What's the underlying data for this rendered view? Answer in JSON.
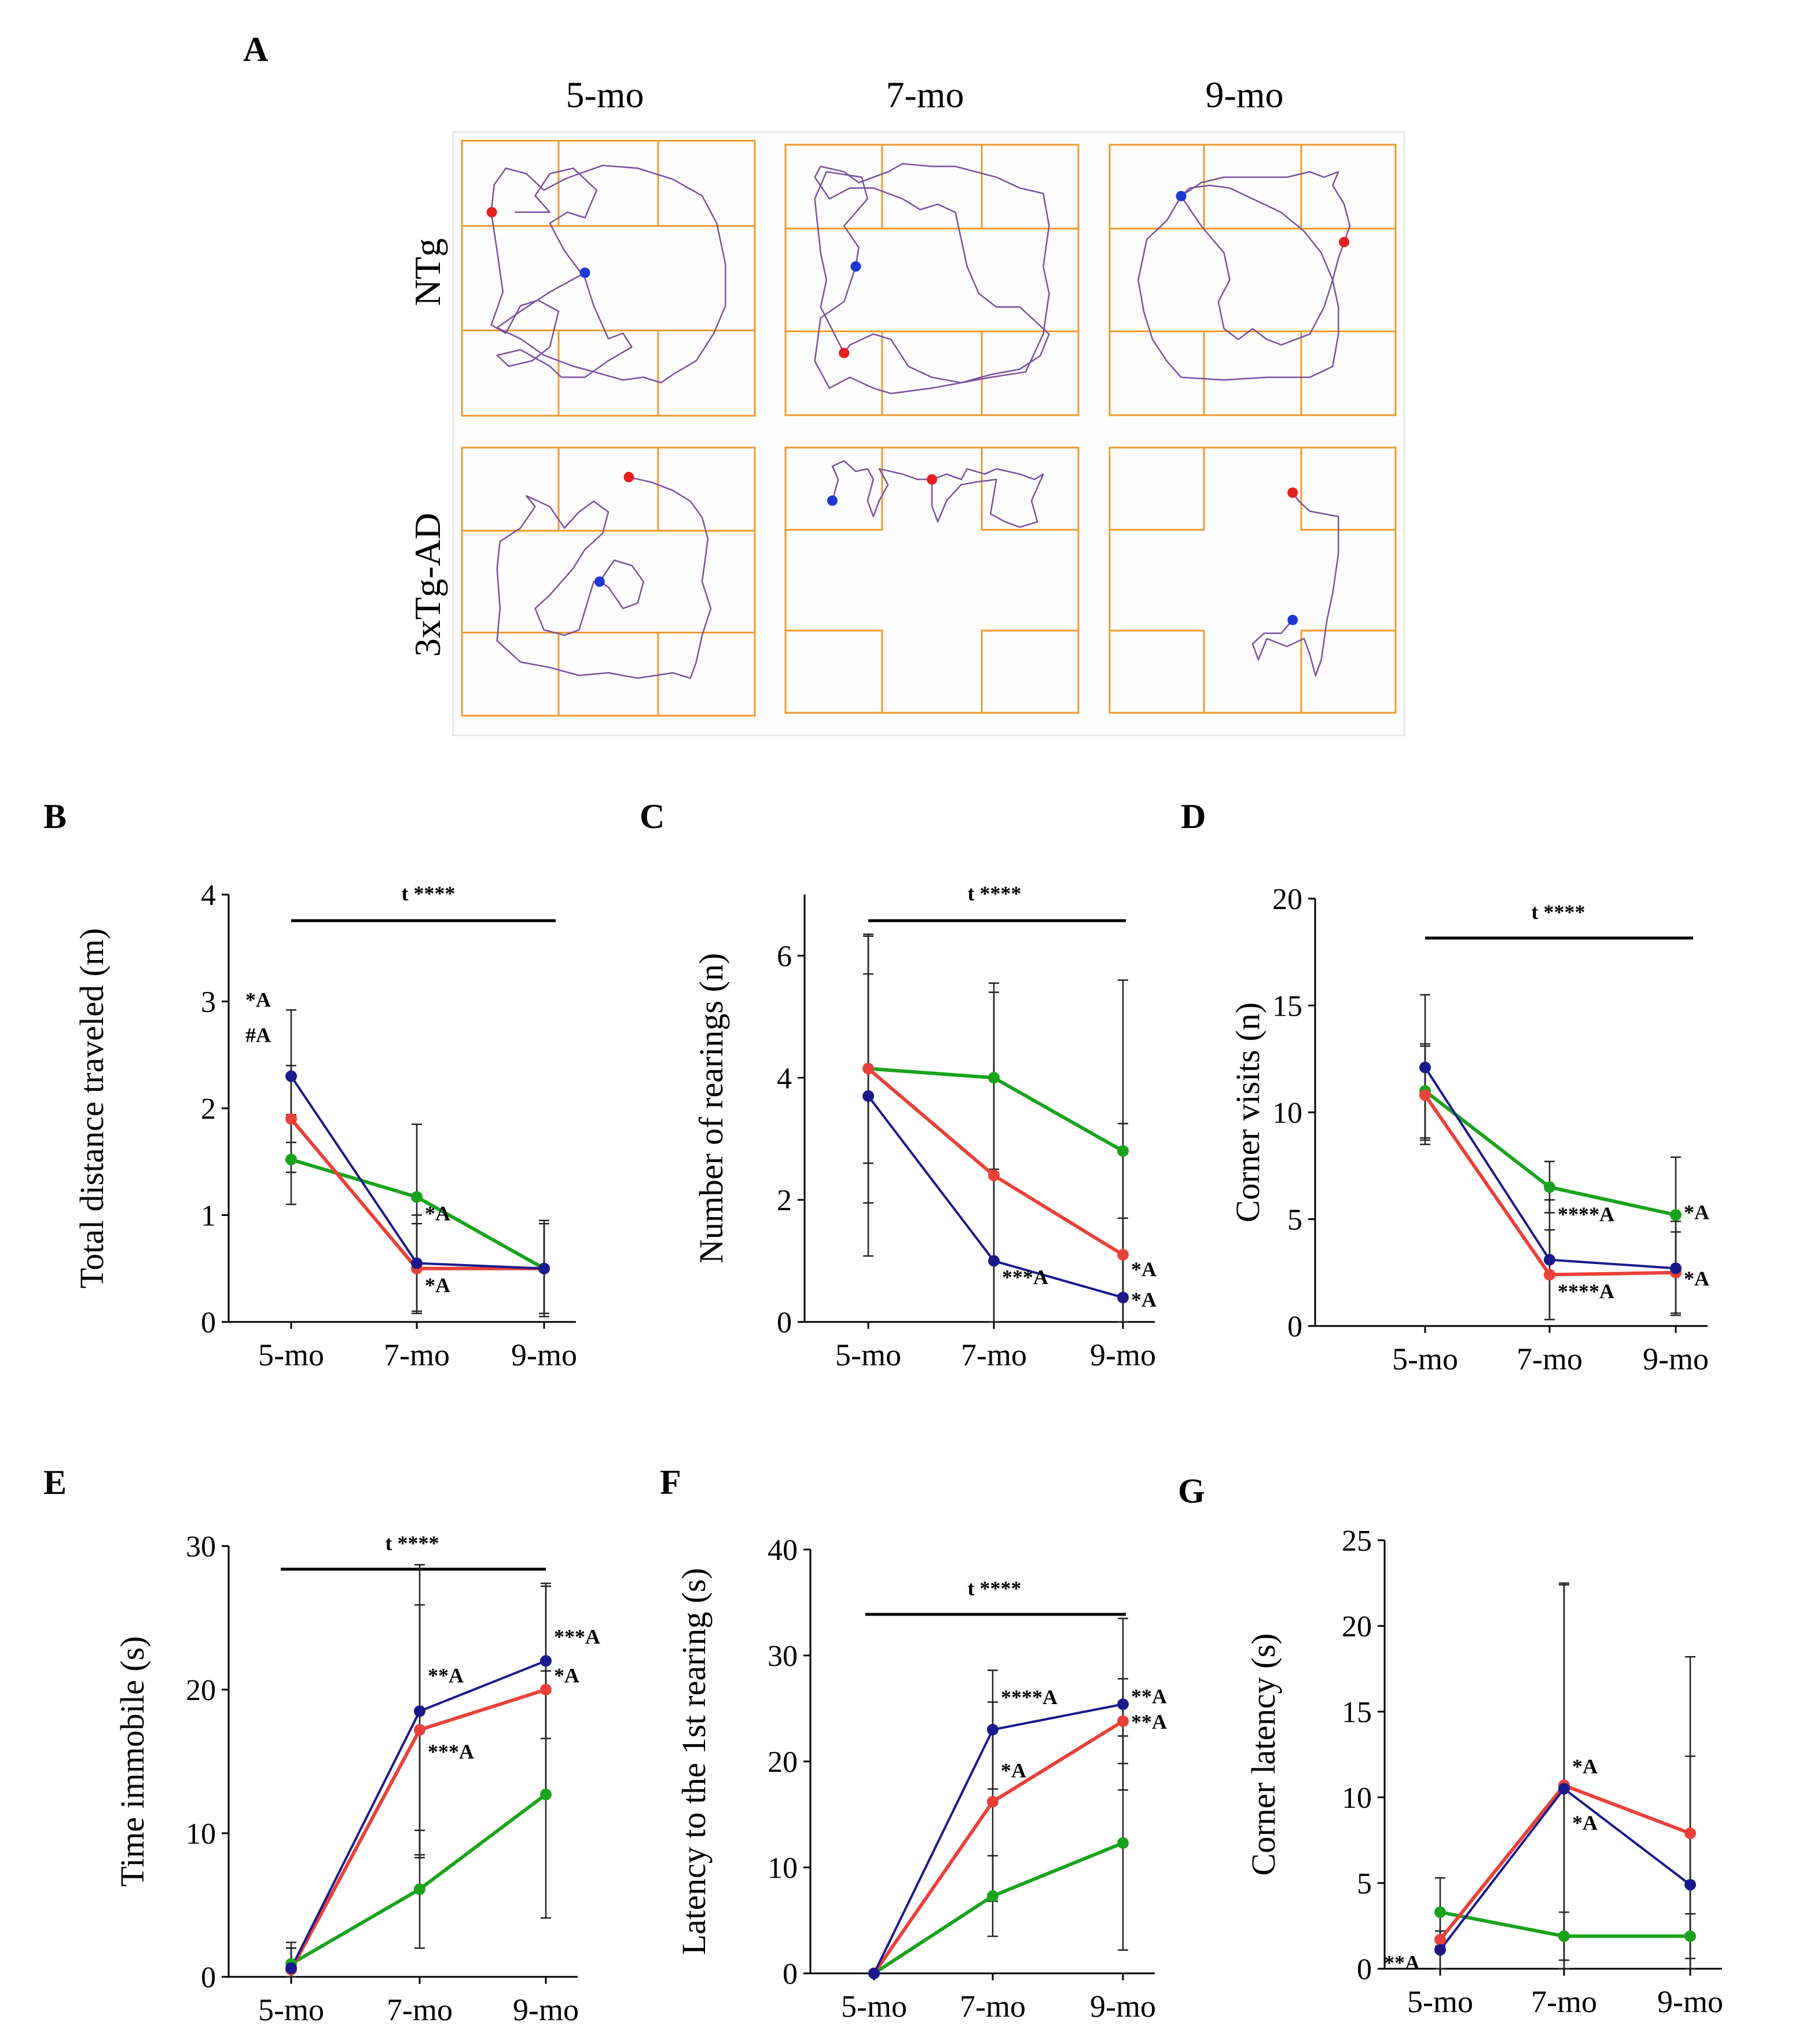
{
  "colors": {
    "blue": "#1a1a8c",
    "red": "#e8413a",
    "green": "#19a31c",
    "track": "#7a4fa0",
    "grid": "#f0992e",
    "start": "#e81e1e",
    "end": "#1e38d6"
  },
  "panel_a": {
    "letter": "A",
    "ages": [
      "5-mo",
      "7-mo",
      "9-mo"
    ],
    "groups": [
      "NTg",
      "3xTg-AD"
    ]
  },
  "chart_data": [
    {
      "id": "B",
      "letter": "B",
      "type": "line",
      "categories": [
        "5-mo",
        "7-mo",
        "9-mo"
      ],
      "ylabel": "Total distance traveled (m)",
      "ylim": [
        0,
        4
      ],
      "yticks": [
        0,
        1,
        2,
        3,
        4
      ],
      "time_effect": "t ****",
      "series": [
        {
          "name": "blue",
          "color": "#1a1a8c",
          "values": [
            2.3,
            0.55,
            0.5
          ],
          "err": [
            0.62,
            0.45,
            0.45
          ]
        },
        {
          "name": "red",
          "color": "#e8413a",
          "values": [
            1.9,
            0.5,
            0.5
          ],
          "err": [
            0.5,
            0.42,
            0.42
          ]
        },
        {
          "name": "green",
          "color": "#19a31c",
          "values": [
            1.52,
            1.17,
            0.5
          ],
          "err": [
            0.42,
            0.68,
            0.42
          ]
        }
      ],
      "annotations": [
        {
          "text": "*A",
          "x": 0,
          "y": 2.95
        },
        {
          "text": "#A",
          "x": 0,
          "y": 2.62
        },
        {
          "text": "*A",
          "x": 1,
          "y": 0.95
        },
        {
          "text": "*A",
          "x": 1,
          "y": 0.28
        }
      ]
    },
    {
      "id": "C",
      "letter": "C",
      "type": "line",
      "categories": [
        "5-mo",
        "7-mo",
        "9-mo"
      ],
      "ylabel": "Number of rearings (n)",
      "ylim": [
        0,
        7
      ],
      "yticks": [
        0,
        2,
        4,
        6
      ],
      "time_effect": "t ****",
      "series": [
        {
          "name": "blue",
          "color": "#1a1a8c",
          "values": [
            3.7,
            1.0,
            0.4
          ],
          "err": [
            2.62,
            1.5,
            1.3
          ]
        },
        {
          "name": "red",
          "color": "#e8413a",
          "values": [
            4.15,
            2.4,
            1.1
          ],
          "err": [
            1.55,
            3.0,
            2.15
          ]
        },
        {
          "name": "green",
          "color": "#19a31c",
          "values": [
            4.15,
            4.0,
            2.8
          ],
          "err": [
            2.2,
            1.55,
            2.8
          ]
        }
      ],
      "annotations": [
        {
          "text": "***A",
          "x": 1,
          "y": 0.62
        },
        {
          "text": "*A",
          "x": 2,
          "y": 0.75
        },
        {
          "text": "*A",
          "x": 2,
          "y": 0.25
        }
      ]
    },
    {
      "id": "D",
      "letter": "D",
      "type": "line",
      "categories": [
        "5-mo",
        "7-mo",
        "9-mo"
      ],
      "ylabel": "Corner visits (n)",
      "ylim": [
        0,
        20
      ],
      "yticks": [
        0,
        5,
        10,
        15,
        20
      ],
      "time_effect": "t ****",
      "series": [
        {
          "name": "blue",
          "color": "#1a1a8c",
          "values": [
            12.1,
            3.1,
            2.7
          ],
          "err": [
            3.4,
            2.8,
            2.2
          ]
        },
        {
          "name": "red",
          "color": "#e8413a",
          "values": [
            10.8,
            2.4,
            2.5
          ],
          "err": [
            2.3,
            2.1,
            1.9
          ]
        },
        {
          "name": "green",
          "color": "#19a31c",
          "values": [
            11.0,
            6.5,
            5.2
          ],
          "err": [
            2.2,
            1.2,
            2.7
          ]
        }
      ],
      "annotations": [
        {
          "text": "****A",
          "x": 1,
          "y": 4.9
        },
        {
          "text": "****A",
          "x": 1,
          "y": 1.3
        },
        {
          "text": "*A",
          "x": 2,
          "y": 5.0
        },
        {
          "text": "*A",
          "x": 2,
          "y": 1.9
        }
      ]
    },
    {
      "id": "E",
      "letter": "E",
      "type": "line",
      "categories": [
        "5-mo",
        "7-mo",
        "9-mo"
      ],
      "ylabel": "Time immobile (s)",
      "ylim": [
        0,
        30
      ],
      "yticks": [
        0,
        10,
        20,
        30
      ],
      "time_effect": "t ****",
      "series": [
        {
          "name": "blue",
          "color": "#1a1a8c",
          "values": [
            0.6,
            18.5,
            22.0
          ],
          "err": [
            1.8,
            10.2,
            5.4
          ]
        },
        {
          "name": "red",
          "color": "#e8413a",
          "values": [
            0.5,
            17.2,
            20.0
          ],
          "err": [
            1.5,
            8.7,
            7.2
          ]
        },
        {
          "name": "green",
          "color": "#19a31c",
          "values": [
            0.9,
            6.1,
            12.7
          ],
          "err": [
            1.1,
            4.1,
            8.6
          ]
        }
      ],
      "annotations": [
        {
          "text": "**A",
          "x": 1,
          "y": 20.5
        },
        {
          "text": "***A",
          "x": 1,
          "y": 15.2
        },
        {
          "text": "***A",
          "x": 2,
          "y": 23.2
        },
        {
          "text": "*A",
          "x": 2,
          "y": 20.5
        }
      ]
    },
    {
      "id": "F",
      "letter": "F",
      "type": "line",
      "categories": [
        "5-mo",
        "7-mo",
        "9-mo"
      ],
      "ylabel": "Latency to the 1st rearing (s)",
      "ylim": [
        0,
        40
      ],
      "yticks": [
        0,
        10,
        20,
        30,
        40
      ],
      "time_effect": "t ****",
      "series": [
        {
          "name": "blue",
          "color": "#1a1a8c",
          "values": [
            0,
            23.0,
            25.4
          ],
          "err": [
            0,
            5.6,
            8.1
          ]
        },
        {
          "name": "red",
          "color": "#e8413a",
          "values": [
            0,
            16.2,
            23.8
          ],
          "err": [
            0,
            9.4,
            4.0
          ]
        },
        {
          "name": "green",
          "color": "#19a31c",
          "values": [
            0,
            7.3,
            12.3
          ],
          "err": [
            0,
            3.8,
            10.1
          ]
        }
      ],
      "annotations": [
        {
          "text": "****A",
          "x": 1,
          "y": 25.4
        },
        {
          "text": "*A",
          "x": 1,
          "y": 18.5
        },
        {
          "text": "**A",
          "x": 2,
          "y": 25.5
        },
        {
          "text": "**A",
          "x": 2,
          "y": 23.1
        }
      ]
    },
    {
      "id": "G",
      "letter": "G",
      "type": "line",
      "categories": [
        "5-mo",
        "7-mo",
        "9-mo"
      ],
      "ylabel": "Corner latency (s)",
      "ylim": [
        0,
        25
      ],
      "yticks": [
        0,
        5,
        10,
        15,
        20,
        25
      ],
      "time_effect": "",
      "series": [
        {
          "name": "blue",
          "color": "#1a1a8c",
          "values": [
            1.1,
            10.5,
            4.9
          ],
          "err": [
            1.1,
            11.9,
            7.5
          ]
        },
        {
          "name": "red",
          "color": "#e8413a",
          "values": [
            1.7,
            10.7,
            7.9
          ],
          "err": [
            1.7,
            11.8,
            10.3
          ]
        },
        {
          "name": "green",
          "color": "#19a31c",
          "values": [
            3.3,
            1.9,
            1.9
          ],
          "err": [
            2.0,
            1.4,
            1.3
          ]
        }
      ],
      "annotations": [
        {
          "text": "**A",
          "x": 0,
          "y": -0.05
        },
        {
          "text": "*A",
          "x": 1,
          "y": 11.4
        },
        {
          "text": "*A",
          "x": 1,
          "y": 8.1
        }
      ]
    }
  ]
}
